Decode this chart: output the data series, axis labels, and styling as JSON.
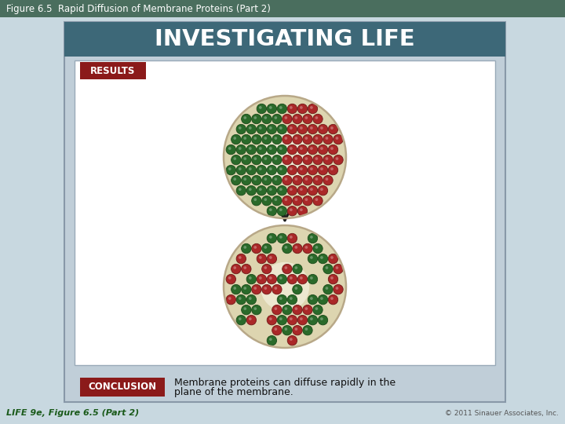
{
  "title_bar_color": "#4a7a8a",
  "title_text": "INVESTIGATING LIFE",
  "title_text_color": "#ffffff",
  "fig_title": "Figure 6.5  Rapid Diffusion of Membrane Proteins (Part 2)",
  "fig_title_color": "#ffffff",
  "fig_title_bg": "#5a7a6a",
  "outer_bg": "#c0ced8",
  "inner_bg": "#ffffff",
  "results_label": "RESULTS",
  "results_bg": "#8b1a1a",
  "results_text_color": "#ffffff",
  "conclusion_label": "CONCLUSION",
  "conclusion_bg": "#8b1a1a",
  "conclusion_text_color": "#ffffff",
  "conclusion_text1": "Membrane proteins can diffuse rapidly in the",
  "conclusion_text2": "plane of the membrane.",
  "conclusion_text_color2": "#111111",
  "cell_fill": "#ddd5b0",
  "cell_fill_center": "#ede8d0",
  "cell_edge": "#b8a888",
  "green_dot_color": "#2a6a2a",
  "green_dot_edge": "#1a4a1a",
  "red_dot_color": "#aa2828",
  "red_dot_edge": "#701818",
  "footer_text": "LIFE 9e, Figure 6.5 (Part 2)",
  "footer_right": "© 2011 Sinauer Associates, Inc.",
  "footer_left_color": "#1a5a1a",
  "footer_right_color": "#555555",
  "arrow_color": "#1a1a1a",
  "header_bg": "#3d6878"
}
